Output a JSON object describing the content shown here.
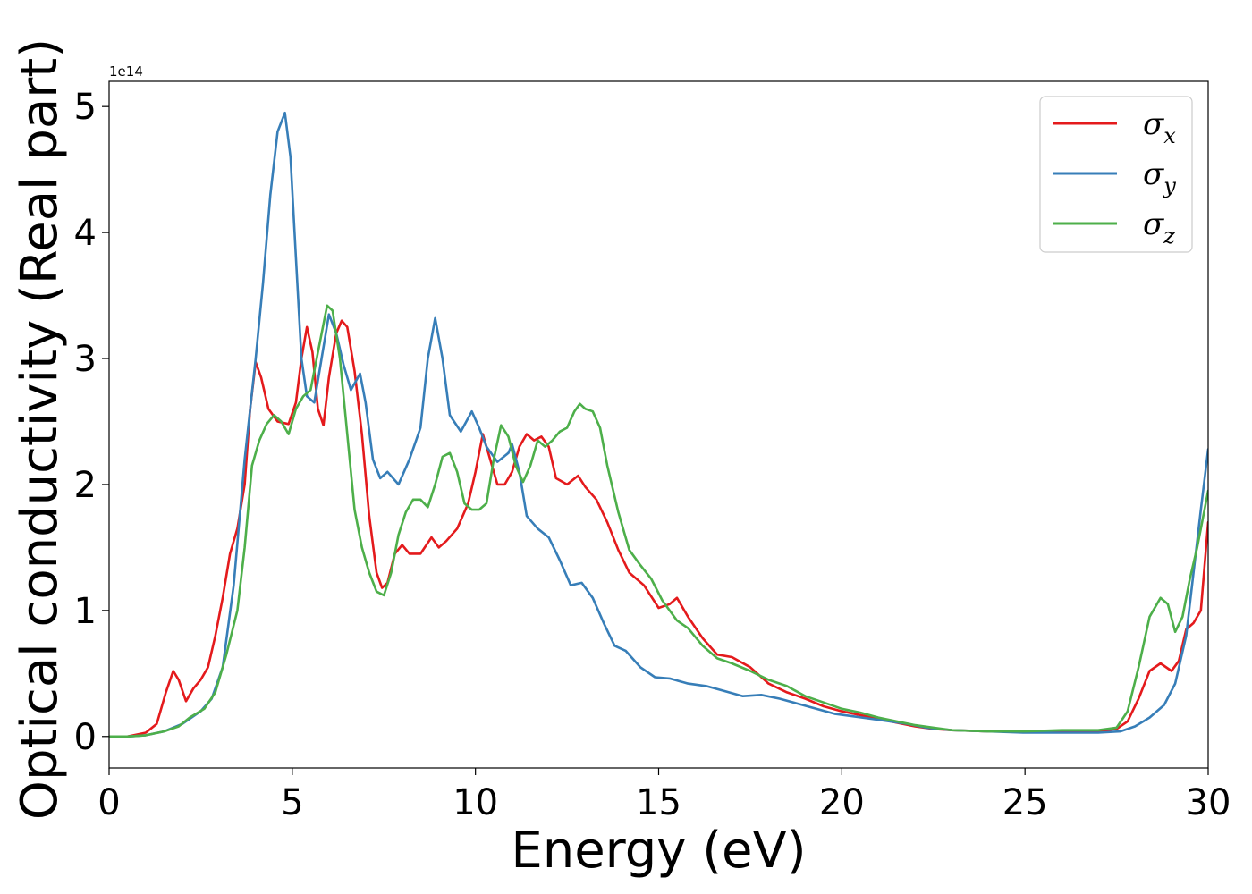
{
  "chart_data": {
    "type": "line",
    "xlabel": "Energy (eV)",
    "ylabel": "Optical conductivity (Real part)",
    "offset_label": "1e14",
    "xlim": [
      0,
      30
    ],
    "ylim": [
      -0.25,
      5.2
    ],
    "xticks": [
      0,
      5,
      10,
      15,
      20,
      25,
      30
    ],
    "xtick_labels": [
      "0",
      "5",
      "10",
      "15",
      "20",
      "25",
      "30"
    ],
    "yticks": [
      0,
      1,
      2,
      3,
      4,
      5
    ],
    "ytick_labels": [
      "0",
      "1",
      "2",
      "3",
      "4",
      "5"
    ],
    "grid": false,
    "legend_position": "top-right",
    "series": [
      {
        "name": "σx",
        "legend_base": "σ",
        "legend_sub": "x",
        "color": "#e41a1c",
        "points": [
          [
            0,
            0
          ],
          [
            0.5,
            0
          ],
          [
            1,
            0.03
          ],
          [
            1.3,
            0.1
          ],
          [
            1.55,
            0.35
          ],
          [
            1.75,
            0.52
          ],
          [
            1.9,
            0.45
          ],
          [
            2.1,
            0.28
          ],
          [
            2.3,
            0.38
          ],
          [
            2.5,
            0.45
          ],
          [
            2.7,
            0.55
          ],
          [
            2.9,
            0.8
          ],
          [
            3.1,
            1.1
          ],
          [
            3.3,
            1.45
          ],
          [
            3.5,
            1.65
          ],
          [
            3.7,
            2.0
          ],
          [
            3.85,
            2.6
          ],
          [
            4.0,
            2.97
          ],
          [
            4.15,
            2.85
          ],
          [
            4.35,
            2.6
          ],
          [
            4.6,
            2.5
          ],
          [
            4.9,
            2.48
          ],
          [
            5.1,
            2.65
          ],
          [
            5.25,
            3.0
          ],
          [
            5.4,
            3.25
          ],
          [
            5.55,
            3.05
          ],
          [
            5.7,
            2.6
          ],
          [
            5.85,
            2.47
          ],
          [
            6.0,
            2.85
          ],
          [
            6.2,
            3.2
          ],
          [
            6.35,
            3.3
          ],
          [
            6.5,
            3.25
          ],
          [
            6.7,
            2.9
          ],
          [
            6.9,
            2.4
          ],
          [
            7.1,
            1.75
          ],
          [
            7.3,
            1.3
          ],
          [
            7.45,
            1.18
          ],
          [
            7.6,
            1.22
          ],
          [
            7.8,
            1.45
          ],
          [
            8.0,
            1.52
          ],
          [
            8.2,
            1.45
          ],
          [
            8.5,
            1.45
          ],
          [
            8.8,
            1.58
          ],
          [
            9.0,
            1.5
          ],
          [
            9.2,
            1.55
          ],
          [
            9.5,
            1.65
          ],
          [
            9.8,
            1.85
          ],
          [
            10.0,
            2.1
          ],
          [
            10.2,
            2.4
          ],
          [
            10.4,
            2.2
          ],
          [
            10.6,
            2.0
          ],
          [
            10.8,
            2.0
          ],
          [
            11.0,
            2.1
          ],
          [
            11.2,
            2.3
          ],
          [
            11.4,
            2.4
          ],
          [
            11.6,
            2.35
          ],
          [
            11.8,
            2.38
          ],
          [
            12.0,
            2.3
          ],
          [
            12.2,
            2.05
          ],
          [
            12.5,
            2.0
          ],
          [
            12.8,
            2.07
          ],
          [
            13.0,
            1.98
          ],
          [
            13.3,
            1.88
          ],
          [
            13.6,
            1.7
          ],
          [
            13.9,
            1.48
          ],
          [
            14.2,
            1.3
          ],
          [
            14.6,
            1.2
          ],
          [
            15.0,
            1.02
          ],
          [
            15.3,
            1.05
          ],
          [
            15.5,
            1.1
          ],
          [
            15.8,
            0.95
          ],
          [
            16.2,
            0.78
          ],
          [
            16.6,
            0.65
          ],
          [
            17.0,
            0.63
          ],
          [
            17.5,
            0.55
          ],
          [
            18.0,
            0.42
          ],
          [
            18.5,
            0.35
          ],
          [
            19.0,
            0.3
          ],
          [
            19.5,
            0.24
          ],
          [
            20.0,
            0.2
          ],
          [
            20.5,
            0.17
          ],
          [
            21.0,
            0.14
          ],
          [
            21.5,
            0.11
          ],
          [
            22.0,
            0.08
          ],
          [
            22.5,
            0.06
          ],
          [
            23.0,
            0.05
          ],
          [
            24.0,
            0.04
          ],
          [
            25.0,
            0.04
          ],
          [
            26.0,
            0.04
          ],
          [
            27.0,
            0.04
          ],
          [
            27.5,
            0.06
          ],
          [
            27.8,
            0.12
          ],
          [
            28.1,
            0.3
          ],
          [
            28.4,
            0.52
          ],
          [
            28.7,
            0.58
          ],
          [
            29.0,
            0.52
          ],
          [
            29.2,
            0.6
          ],
          [
            29.4,
            0.85
          ],
          [
            29.6,
            0.9
          ],
          [
            29.8,
            1.0
          ],
          [
            30.0,
            1.7
          ]
        ]
      },
      {
        "name": "σy",
        "legend_base": "σ",
        "legend_sub": "y",
        "color": "#377eb8",
        "points": [
          [
            0,
            0
          ],
          [
            0.5,
            0
          ],
          [
            1,
            0.01
          ],
          [
            1.5,
            0.04
          ],
          [
            2.0,
            0.1
          ],
          [
            2.5,
            0.2
          ],
          [
            2.8,
            0.3
          ],
          [
            3.1,
            0.55
          ],
          [
            3.4,
            1.2
          ],
          [
            3.7,
            2.2
          ],
          [
            4.0,
            3.0
          ],
          [
            4.2,
            3.6
          ],
          [
            4.4,
            4.3
          ],
          [
            4.6,
            4.8
          ],
          [
            4.8,
            4.95
          ],
          [
            4.95,
            4.6
          ],
          [
            5.1,
            3.8
          ],
          [
            5.25,
            3.0
          ],
          [
            5.4,
            2.7
          ],
          [
            5.6,
            2.65
          ],
          [
            5.8,
            3.0
          ],
          [
            6.0,
            3.35
          ],
          [
            6.2,
            3.2
          ],
          [
            6.4,
            2.95
          ],
          [
            6.6,
            2.75
          ],
          [
            6.85,
            2.88
          ],
          [
            7.0,
            2.65
          ],
          [
            7.2,
            2.2
          ],
          [
            7.4,
            2.05
          ],
          [
            7.6,
            2.1
          ],
          [
            7.9,
            2.0
          ],
          [
            8.2,
            2.2
          ],
          [
            8.5,
            2.45
          ],
          [
            8.7,
            3.0
          ],
          [
            8.9,
            3.32
          ],
          [
            9.1,
            3.0
          ],
          [
            9.3,
            2.55
          ],
          [
            9.6,
            2.42
          ],
          [
            9.9,
            2.58
          ],
          [
            10.1,
            2.45
          ],
          [
            10.3,
            2.3
          ],
          [
            10.6,
            2.18
          ],
          [
            10.9,
            2.25
          ],
          [
            11.0,
            2.32
          ],
          [
            11.2,
            2.1
          ],
          [
            11.4,
            1.75
          ],
          [
            11.7,
            1.65
          ],
          [
            12.0,
            1.58
          ],
          [
            12.3,
            1.4
          ],
          [
            12.6,
            1.2
          ],
          [
            12.9,
            1.22
          ],
          [
            13.2,
            1.1
          ],
          [
            13.5,
            0.9
          ],
          [
            13.8,
            0.72
          ],
          [
            14.1,
            0.68
          ],
          [
            14.5,
            0.55
          ],
          [
            14.9,
            0.47
          ],
          [
            15.3,
            0.46
          ],
          [
            15.8,
            0.42
          ],
          [
            16.3,
            0.4
          ],
          [
            16.8,
            0.36
          ],
          [
            17.3,
            0.32
          ],
          [
            17.8,
            0.33
          ],
          [
            18.3,
            0.3
          ],
          [
            18.8,
            0.26
          ],
          [
            19.3,
            0.22
          ],
          [
            19.8,
            0.18
          ],
          [
            20.3,
            0.16
          ],
          [
            20.8,
            0.14
          ],
          [
            21.3,
            0.12
          ],
          [
            21.8,
            0.1
          ],
          [
            22.3,
            0.07
          ],
          [
            23.0,
            0.05
          ],
          [
            24.0,
            0.04
          ],
          [
            25.0,
            0.03
          ],
          [
            26.0,
            0.03
          ],
          [
            27.0,
            0.03
          ],
          [
            27.6,
            0.04
          ],
          [
            28.0,
            0.08
          ],
          [
            28.4,
            0.15
          ],
          [
            28.8,
            0.25
          ],
          [
            29.1,
            0.42
          ],
          [
            29.4,
            0.8
          ],
          [
            29.6,
            1.3
          ],
          [
            29.8,
            1.8
          ],
          [
            30.0,
            2.28
          ]
        ]
      },
      {
        "name": "σz",
        "legend_base": "σ",
        "legend_sub": "z",
        "color": "#4daf4a",
        "points": [
          [
            0,
            0
          ],
          [
            0.5,
            0
          ],
          [
            1,
            0.01
          ],
          [
            1.5,
            0.04
          ],
          [
            1.9,
            0.08
          ],
          [
            2.2,
            0.15
          ],
          [
            2.6,
            0.22
          ],
          [
            2.9,
            0.35
          ],
          [
            3.2,
            0.65
          ],
          [
            3.5,
            1.0
          ],
          [
            3.7,
            1.5
          ],
          [
            3.9,
            2.15
          ],
          [
            4.1,
            2.35
          ],
          [
            4.3,
            2.48
          ],
          [
            4.5,
            2.55
          ],
          [
            4.7,
            2.5
          ],
          [
            4.9,
            2.4
          ],
          [
            5.1,
            2.6
          ],
          [
            5.3,
            2.7
          ],
          [
            5.5,
            2.75
          ],
          [
            5.7,
            3.05
          ],
          [
            5.95,
            3.42
          ],
          [
            6.1,
            3.38
          ],
          [
            6.3,
            3.0
          ],
          [
            6.5,
            2.4
          ],
          [
            6.7,
            1.8
          ],
          [
            6.9,
            1.5
          ],
          [
            7.1,
            1.3
          ],
          [
            7.3,
            1.15
          ],
          [
            7.5,
            1.12
          ],
          [
            7.7,
            1.3
          ],
          [
            7.9,
            1.6
          ],
          [
            8.1,
            1.78
          ],
          [
            8.3,
            1.88
          ],
          [
            8.5,
            1.88
          ],
          [
            8.7,
            1.82
          ],
          [
            8.9,
            2.0
          ],
          [
            9.1,
            2.22
          ],
          [
            9.3,
            2.25
          ],
          [
            9.5,
            2.1
          ],
          [
            9.7,
            1.85
          ],
          [
            9.9,
            1.8
          ],
          [
            10.1,
            1.8
          ],
          [
            10.3,
            1.85
          ],
          [
            10.5,
            2.2
          ],
          [
            10.7,
            2.47
          ],
          [
            10.9,
            2.38
          ],
          [
            11.1,
            2.15
          ],
          [
            11.3,
            2.02
          ],
          [
            11.5,
            2.15
          ],
          [
            11.7,
            2.35
          ],
          [
            11.9,
            2.3
          ],
          [
            12.1,
            2.35
          ],
          [
            12.3,
            2.42
          ],
          [
            12.5,
            2.45
          ],
          [
            12.7,
            2.58
          ],
          [
            12.85,
            2.64
          ],
          [
            13.0,
            2.6
          ],
          [
            13.2,
            2.58
          ],
          [
            13.4,
            2.45
          ],
          [
            13.6,
            2.15
          ],
          [
            13.9,
            1.78
          ],
          [
            14.2,
            1.48
          ],
          [
            14.5,
            1.36
          ],
          [
            14.8,
            1.25
          ],
          [
            15.1,
            1.08
          ],
          [
            15.5,
            0.92
          ],
          [
            15.8,
            0.86
          ],
          [
            16.2,
            0.72
          ],
          [
            16.6,
            0.62
          ],
          [
            17.0,
            0.58
          ],
          [
            17.5,
            0.52
          ],
          [
            18.0,
            0.45
          ],
          [
            18.5,
            0.4
          ],
          [
            19.0,
            0.32
          ],
          [
            19.5,
            0.27
          ],
          [
            20.0,
            0.22
          ],
          [
            20.5,
            0.19
          ],
          [
            21.0,
            0.15
          ],
          [
            21.5,
            0.12
          ],
          [
            22.0,
            0.09
          ],
          [
            22.5,
            0.07
          ],
          [
            23.0,
            0.05
          ],
          [
            24.0,
            0.04
          ],
          [
            25.0,
            0.04
          ],
          [
            26.0,
            0.05
          ],
          [
            27.0,
            0.05
          ],
          [
            27.5,
            0.07
          ],
          [
            27.8,
            0.2
          ],
          [
            28.1,
            0.55
          ],
          [
            28.4,
            0.95
          ],
          [
            28.7,
            1.1
          ],
          [
            28.9,
            1.05
          ],
          [
            29.1,
            0.83
          ],
          [
            29.3,
            0.95
          ],
          [
            29.5,
            1.25
          ],
          [
            29.7,
            1.5
          ],
          [
            30.0,
            1.95
          ]
        ]
      }
    ]
  }
}
